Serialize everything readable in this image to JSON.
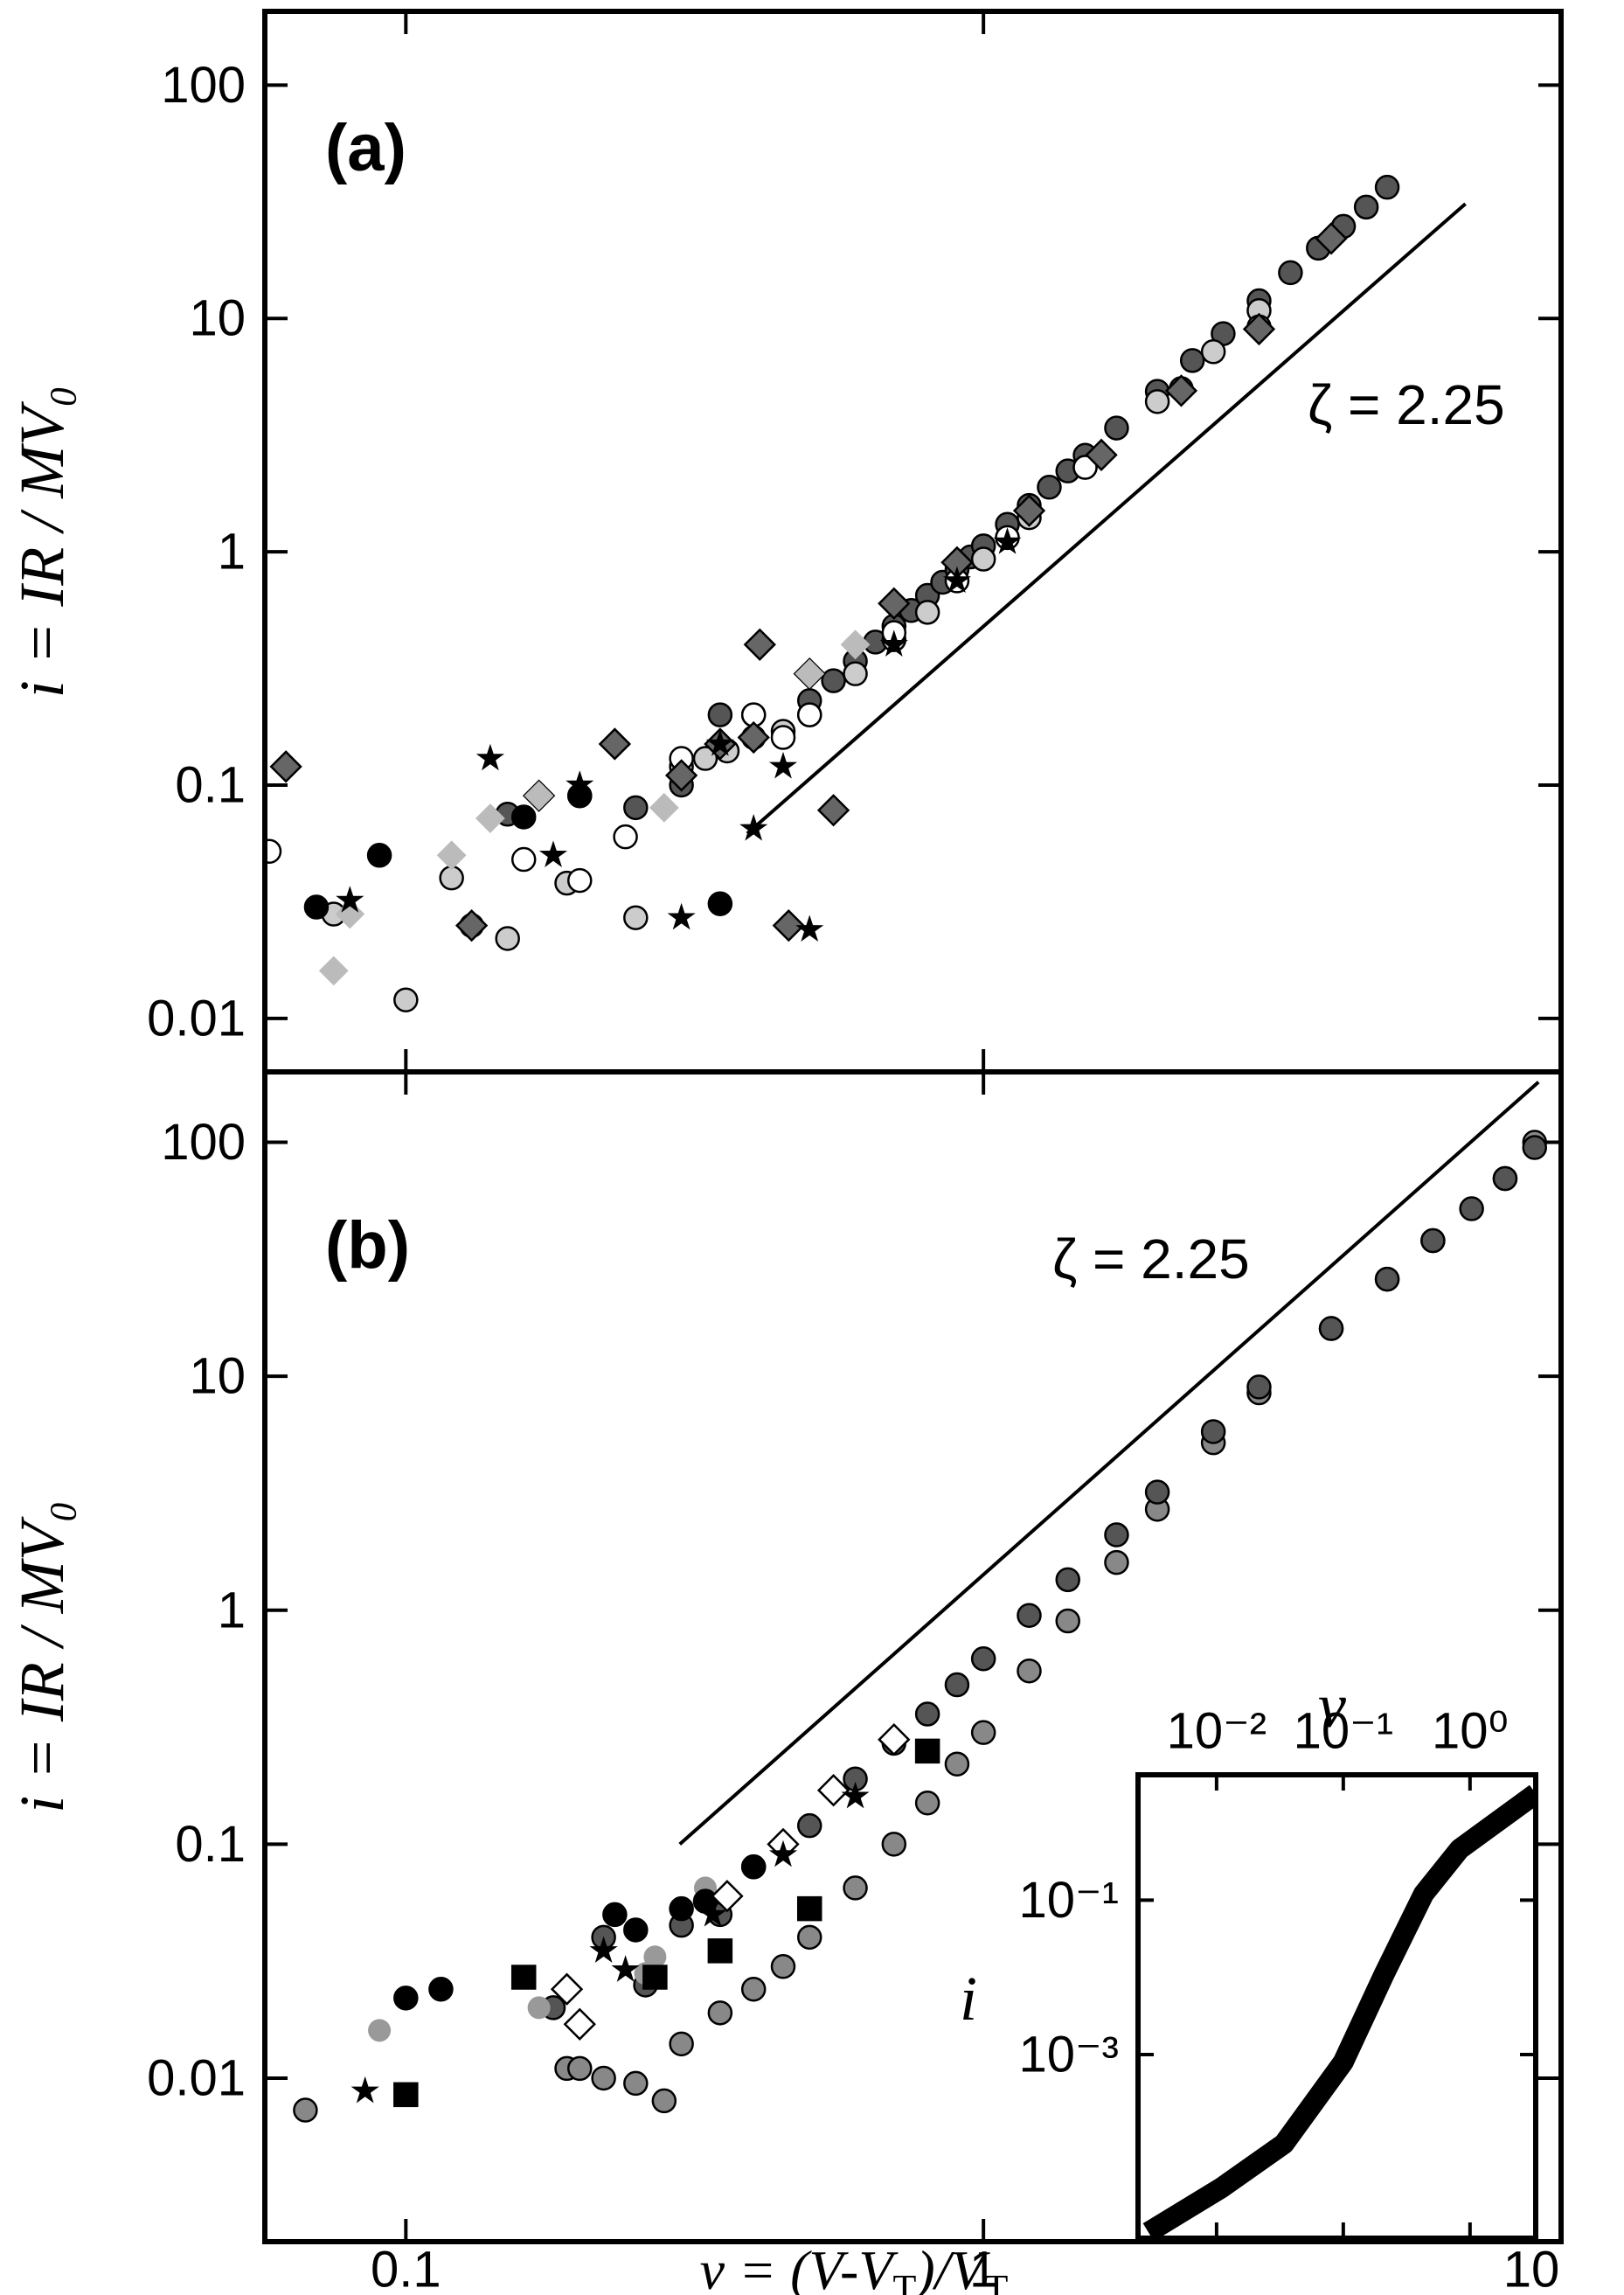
{
  "chart_data": [
    {
      "type": "scatter",
      "label": "(a)",
      "annotation": "ζ = 2.25",
      "y_label": "i = IR / MV₀",
      "xscale": "log",
      "yscale": "log",
      "xlim": [
        0.057,
        10
      ],
      "ylim": [
        0.0059,
        207
      ],
      "xticks": [
        0.1,
        1,
        10
      ],
      "yticks": [
        0.01,
        0.1,
        1,
        10,
        100
      ],
      "fit_line": {
        "x": [
          0.39,
          6.83
        ],
        "y": [
          0.062,
          31
        ]
      },
      "series": [
        {
          "marker": "circle",
          "color": "#555555",
          "edgecolor": "#000000",
          "x": [
            0.15,
            0.2,
            0.25,
            0.3,
            0.35,
            0.4,
            0.5,
            0.55,
            0.6,
            0.65,
            0.7,
            0.75,
            0.8,
            0.85,
            0.9,
            0.95,
            1.0,
            1.1,
            1.2,
            1.3,
            1.4,
            1.5,
            1.7,
            2.0,
            2.3,
            2.6,
            3.0,
            3.4,
            3.8,
            4.2,
            4.6,
            5.0
          ],
          "values": [
            0.075,
            0.09,
            0.08,
            0.1,
            0.2,
            0.2,
            0.23,
            0.28,
            0.34,
            0.41,
            0.48,
            0.56,
            0.65,
            0.74,
            0.84,
            0.95,
            1.06,
            1.31,
            1.58,
            1.89,
            2.22,
            2.59,
            3.39,
            4.87,
            6.6,
            8.6,
            11.9,
            15.7,
            20,
            24.8,
            30,
            36.5
          ]
        },
        {
          "marker": "circle",
          "color": "#cccccc",
          "edgecolor": "#000000",
          "x": [
            0.075,
            0.1,
            0.12,
            0.15,
            0.19,
            0.25,
            0.3,
            0.33,
            0.36,
            0.4,
            0.45,
            0.5,
            0.6,
            0.7,
            0.8,
            1,
            1.2,
            1.5,
            2,
            2.5,
            3
          ],
          "values": [
            0.028,
            0.012,
            0.04,
            0.022,
            0.038,
            0.027,
            0.12,
            0.13,
            0.14,
            0.16,
            0.17,
            0.2,
            0.3,
            0.42,
            0.55,
            0.93,
            1.4,
            2.3,
            4.4,
            7.2,
            10.8
          ]
        },
        {
          "marker": "circle",
          "color": "#ffffff",
          "edgecolor": "#000000",
          "x": [
            0.058,
            0.13,
            0.16,
            0.2,
            0.24,
            0.3,
            0.4,
            0.45,
            0.5,
            0.7,
            0.9,
            1.1,
            1.5,
            2.2,
            3.0
          ],
          "values": [
            0.052,
            0.025,
            0.048,
            0.039,
            0.06,
            0.13,
            0.2,
            0.16,
            0.2,
            0.45,
            0.75,
            1.15,
            2.3,
            5,
            9.2
          ]
        },
        {
          "marker": "circle",
          "color": "#000000",
          "edgecolor": "#000000",
          "x": [
            0.07,
            0.09,
            0.16,
            0.2,
            0.35
          ],
          "values": [
            0.03,
            0.05,
            0.073,
            0.09,
            0.031
          ]
        },
        {
          "marker": "diamond",
          "color": "#666666",
          "edgecolor": "#000000",
          "x": [
            0.062,
            0.13,
            0.17,
            0.23,
            0.3,
            0.35,
            0.4,
            0.41,
            0.46,
            0.5,
            0.55,
            0.7,
            0.9,
            1.2,
            1.6,
            2.2,
            3.0,
            4.0
          ],
          "values": [
            0.12,
            0.025,
            0.09,
            0.15,
            0.11,
            0.15,
            0.16,
            0.4,
            0.025,
            0.3,
            0.078,
            0.6,
            0.9,
            1.5,
            2.6,
            4.9,
            9,
            22
          ]
        },
        {
          "marker": "diamond",
          "color": "#bbbbbb",
          "edgecolor": "none",
          "x": [
            0.075,
            0.08,
            0.12,
            0.14,
            0.17,
            0.28,
            0.5,
            0.6
          ],
          "values": [
            0.016,
            0.028,
            0.05,
            0.072,
            0.09,
            0.08,
            0.3,
            0.4
          ]
        },
        {
          "marker": "star",
          "color": "#000000",
          "edgecolor": "none",
          "x": [
            0.08,
            0.14,
            0.18,
            0.2,
            0.3,
            0.35,
            0.4,
            0.45,
            0.5,
            0.7,
            0.9,
            1.1
          ],
          "values": [
            0.032,
            0.13,
            0.05,
            0.1,
            0.027,
            0.15,
            0.065,
            0.12,
            0.024,
            0.4,
            0.75,
            1.1
          ]
        }
      ]
    },
    {
      "type": "scatter",
      "label": "(b)",
      "annotation": "ζ = 2.25",
      "y_label": "i = IR / MV₀",
      "x_label": [
        {
          "text": "ν = (V-V"
        },
        {
          "text": "T",
          "sub": true
        },
        {
          "text": ")/V"
        },
        {
          "text": "T",
          "sub": true
        }
      ],
      "xscale": "log",
      "yscale": "log",
      "xlim": [
        0.057,
        10
      ],
      "ylim": [
        0.002,
        200
      ],
      "xticks": [
        0.1,
        1,
        10
      ],
      "yticks": [
        0.01,
        0.1,
        1,
        10,
        100
      ],
      "fit_line": {
        "x": [
          0.298,
          9.14
        ],
        "y": [
          0.1,
          181
        ]
      },
      "series": [
        {
          "marker": "circle",
          "color": "#888888",
          "edgecolor": "#000000",
          "x": [
            0.067,
            0.19,
            0.2,
            0.22,
            0.25,
            0.28,
            0.3,
            0.35,
            0.4,
            0.45,
            0.5,
            0.6,
            0.7,
            0.8,
            0.9,
            1.0,
            1.2,
            1.4,
            1.7,
            2,
            2.5,
            3,
            4,
            5,
            6,
            8,
            9
          ],
          "values": [
            0.0073,
            0.011,
            0.011,
            0.01,
            0.0095,
            0.008,
            0.014,
            0.019,
            0.024,
            0.03,
            0.04,
            0.065,
            0.1,
            0.15,
            0.22,
            0.3,
            0.55,
            0.9,
            1.6,
            2.7,
            5.2,
            8.5,
            16,
            26,
            38,
            70,
            100
          ]
        },
        {
          "marker": "circle",
          "color": "#555555",
          "edgecolor": "#000000",
          "x": [
            0.18,
            0.22,
            0.26,
            0.3,
            0.35,
            0.4,
            0.5,
            0.6,
            0.7,
            0.8,
            0.9,
            1.0,
            1.2,
            1.4,
            1.7,
            2,
            2.5,
            3,
            4,
            5,
            6,
            7,
            8,
            9
          ],
          "values": [
            0.02,
            0.04,
            0.025,
            0.045,
            0.05,
            0.08,
            0.12,
            0.19,
            0.27,
            0.36,
            0.48,
            0.62,
            0.95,
            1.35,
            2.1,
            3.2,
            5.8,
            9,
            16,
            26,
            38,
            52,
            70,
            95
          ]
        },
        {
          "marker": "circle",
          "color": "#999999",
          "edgecolor": "none",
          "x": [
            0.09,
            0.17,
            0.26,
            0.27,
            0.33
          ],
          "values": [
            0.016,
            0.02,
            0.028,
            0.033,
            0.065
          ]
        },
        {
          "marker": "circle",
          "color": "#000000",
          "edgecolor": "#000000",
          "x": [
            0.1,
            0.115,
            0.23,
            0.25,
            0.3,
            0.33,
            0.4
          ],
          "values": [
            0.022,
            0.024,
            0.05,
            0.043,
            0.053,
            0.057,
            0.08
          ]
        },
        {
          "marker": "square",
          "color": "#000000",
          "edgecolor": "#000000",
          "x": [
            0.1,
            0.16,
            0.27,
            0.35,
            0.5,
            0.8
          ],
          "values": [
            0.0085,
            0.027,
            0.027,
            0.035,
            0.053,
            0.25
          ]
        },
        {
          "marker": "diamond",
          "color": "#ffffff",
          "edgecolor": "#000000",
          "x": [
            0.19,
            0.2,
            0.36,
            0.45,
            0.55,
            0.7
          ],
          "values": [
            0.024,
            0.017,
            0.06,
            0.1,
            0.17,
            0.28
          ]
        },
        {
          "marker": "star",
          "color": "#000000",
          "edgecolor": "none",
          "x": [
            0.085,
            0.22,
            0.24,
            0.34,
            0.45,
            0.6
          ],
          "values": [
            0.0088,
            0.035,
            0.029,
            0.05,
            0.09,
            0.16
          ]
        }
      ]
    },
    {
      "type": "line",
      "x_label": "ν",
      "y_label": "i",
      "xscale": "log",
      "yscale": "log",
      "xlim": [
        0.0024,
        3.3
      ],
      "ylim": [
        4.2e-06,
        4.2
      ],
      "xticks": [
        {
          "value": 0.01,
          "label": "10⁻²"
        },
        {
          "value": 0.1,
          "label": "10⁻¹"
        },
        {
          "value": 1,
          "label": "10⁰"
        }
      ],
      "yticks": [
        {
          "value": 0.001,
          "label": "10⁻³"
        },
        {
          "value": 0.1,
          "label": "10⁻¹"
        }
      ],
      "color": "#000000",
      "x": [
        0.0029,
        0.011,
        0.034,
        0.1,
        0.21,
        0.43,
        0.83,
        3.3
      ],
      "values": [
        5e-06,
        1.9e-05,
        7e-05,
        0.0008,
        0.011,
        0.12,
        0.46,
        2.4
      ]
    }
  ]
}
